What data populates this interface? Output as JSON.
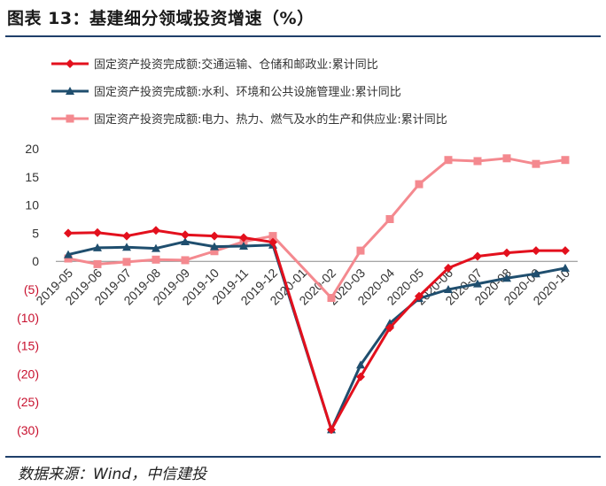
{
  "figure_title": "图表 13：基建细分领域投资增速（%）",
  "source_note": "数据来源：Wind，中信建投",
  "chart_data": {
    "type": "line",
    "title": "",
    "xlabel": "",
    "ylabel": "",
    "ylim": [
      -30,
      20
    ],
    "yticks": [
      20,
      15,
      10,
      5,
      0,
      -5,
      -10,
      -15,
      -20,
      -25,
      -30
    ],
    "ytick_labels": [
      "20",
      "15",
      "10",
      "5",
      "0",
      "(5)",
      "(10)",
      "(15)",
      "(20)",
      "(25)",
      "(30)"
    ],
    "grid": false,
    "legend_position": "top-left",
    "categories": [
      "2019-05",
      "2019-06",
      "2019-07",
      "2019-08",
      "2019-09",
      "2019-10",
      "2019-11",
      "2019-12",
      "2020-01",
      "2020-02",
      "2020-03",
      "2020-04",
      "2020-05",
      "2020-06",
      "2020-07",
      "2020-08",
      "2020-09",
      "2020-10"
    ],
    "series": [
      {
        "name": "固定资产投资完成额:交通运输、仓储和邮政业:累计同比",
        "color": "#e3101d",
        "marker": "diamond",
        "values": [
          5.0,
          5.1,
          4.5,
          5.5,
          4.7,
          4.5,
          4.2,
          3.4,
          null,
          -29.9,
          -20.5,
          -11.8,
          -6.2,
          -1.2,
          0.9,
          1.5,
          1.9,
          1.9
        ]
      },
      {
        "name": "固定资产投资完成额:水利、环境和公共设施管理业:累计同比",
        "color": "#1f4e6e",
        "marker": "triangle",
        "values": [
          1.2,
          2.4,
          2.5,
          2.3,
          3.5,
          2.6,
          2.7,
          2.9,
          null,
          -29.9,
          -18.4,
          -11.0,
          -6.6,
          -5.0,
          -4.0,
          -3.0,
          -2.2,
          -1.2
        ]
      },
      {
        "name": "固定资产投资完成额:电力、热力、燃气及水的生产和供应业:累计同比",
        "color": "#f4898f",
        "marker": "square",
        "values": [
          0.5,
          -0.5,
          -0.1,
          0.3,
          0.2,
          1.8,
          3.5,
          4.5,
          null,
          -6.5,
          1.9,
          7.5,
          13.7,
          18.0,
          17.8,
          18.3,
          17.3,
          18.0
        ]
      }
    ]
  }
}
